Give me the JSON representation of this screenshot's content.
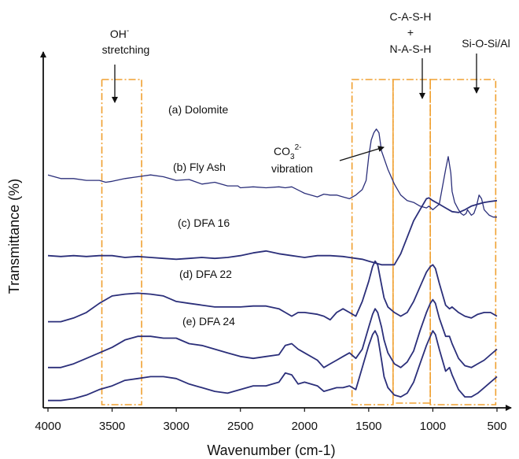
{
  "chart_data": {
    "type": "line",
    "xlabel": "Wavenumber (cm-1)",
    "ylabel": "Transmittance (%)",
    "xlim": [
      4000,
      450
    ],
    "x_reversed": true,
    "x_ticks": [
      4000,
      3500,
      3000,
      2500,
      2000,
      1500,
      1000,
      500
    ],
    "y_ticks_shown": false,
    "grid": false,
    "legend": "none",
    "line_color": "#2b2f7a",
    "box_color": "#f0a030",
    "series": [
      {
        "name": "(a) Dolomite",
        "x": [
          4000,
          3900,
          3800,
          3700,
          3600,
          3550,
          3500,
          3400,
          3300,
          3200,
          3100,
          3000,
          2900,
          2800,
          2700,
          2600,
          2520,
          2500,
          2400,
          2300,
          2200,
          2150,
          2100,
          2000,
          1900,
          1850,
          1800,
          1750,
          1700,
          1650,
          1600,
          1550,
          1520,
          1500,
          1480,
          1460,
          1440,
          1420,
          1400,
          1350,
          1300,
          1250,
          1200,
          1150,
          1100,
          1050,
          1030,
          1000,
          950,
          900,
          880,
          860,
          850,
          830,
          800,
          780,
          760,
          740,
          730,
          720,
          700,
          680,
          660,
          640,
          620,
          600,
          560,
          530,
          500
        ],
        "y": [
          0.55,
          0.57,
          0.57,
          0.58,
          0.58,
          0.59,
          0.585,
          0.57,
          0.56,
          0.55,
          0.56,
          0.58,
          0.575,
          0.6,
          0.59,
          0.61,
          0.61,
          0.62,
          0.615,
          0.62,
          0.615,
          0.62,
          0.615,
          0.65,
          0.67,
          0.655,
          0.66,
          0.66,
          0.67,
          0.68,
          0.66,
          0.63,
          0.58,
          0.45,
          0.36,
          0.32,
          0.3,
          0.32,
          0.42,
          0.52,
          0.6,
          0.66,
          0.69,
          0.7,
          0.72,
          0.73,
          0.72,
          0.74,
          0.71,
          0.52,
          0.45,
          0.54,
          0.64,
          0.7,
          0.74,
          0.76,
          0.77,
          0.76,
          0.74,
          0.75,
          0.77,
          0.76,
          0.72,
          0.66,
          0.68,
          0.74,
          0.77,
          0.78,
          0.78
        ]
      },
      {
        "name": "(b) Fly Ash",
        "x": [
          4000,
          3900,
          3800,
          3700,
          3600,
          3500,
          3400,
          3300,
          3200,
          3100,
          3000,
          2900,
          2800,
          2700,
          2600,
          2500,
          2400,
          2300,
          2200,
          2100,
          2000,
          1900,
          1800,
          1700,
          1650,
          1600,
          1550,
          1500,
          1450,
          1400,
          1350,
          1300,
          1250,
          1200,
          1150,
          1100,
          1050,
          1030,
          1000,
          950,
          900,
          850,
          800,
          750,
          700,
          650,
          600,
          550,
          500
        ],
        "y": [
          0.99,
          0.995,
          0.99,
          0.995,
          0.99,
          0.99,
          1.0,
          0.995,
          1.0,
          1.005,
          1.01,
          1.005,
          1.0,
          1.005,
          1.0,
          0.99,
          0.975,
          0.965,
          0.98,
          0.99,
          1.0,
          0.99,
          0.99,
          0.995,
          1.0,
          1.005,
          1.01,
          1.02,
          1.03,
          1.04,
          1.04,
          1.04,
          0.98,
          0.89,
          0.8,
          0.74,
          0.68,
          0.675,
          0.69,
          0.71,
          0.73,
          0.75,
          0.755,
          0.74,
          0.72,
          0.71,
          0.7,
          0.695,
          0.69
        ]
      },
      {
        "name": "(c) DFA 16",
        "x": [
          4000,
          3900,
          3800,
          3700,
          3600,
          3500,
          3400,
          3300,
          3200,
          3100,
          3000,
          2900,
          2800,
          2700,
          2600,
          2500,
          2400,
          2300,
          2200,
          2150,
          2100,
          2050,
          2000,
          1900,
          1850,
          1800,
          1750,
          1700,
          1650,
          1600,
          1550,
          1500,
          1470,
          1450,
          1430,
          1400,
          1380,
          1350,
          1300,
          1250,
          1200,
          1150,
          1100,
          1050,
          1020,
          1000,
          980,
          950,
          900,
          870,
          850,
          800,
          750,
          700,
          650,
          600,
          550,
          500
        ],
        "y": [
          1.35,
          1.35,
          1.33,
          1.3,
          1.25,
          1.21,
          1.2,
          1.195,
          1.2,
          1.21,
          1.24,
          1.25,
          1.26,
          1.27,
          1.27,
          1.27,
          1.265,
          1.265,
          1.28,
          1.3,
          1.32,
          1.3,
          1.3,
          1.31,
          1.32,
          1.34,
          1.3,
          1.28,
          1.3,
          1.32,
          1.24,
          1.13,
          1.05,
          1.02,
          1.04,
          1.15,
          1.22,
          1.27,
          1.3,
          1.32,
          1.3,
          1.24,
          1.16,
          1.08,
          1.05,
          1.04,
          1.06,
          1.14,
          1.26,
          1.28,
          1.27,
          1.3,
          1.32,
          1.33,
          1.31,
          1.3,
          1.3,
          1.32
        ]
      },
      {
        "name": "(d) DFA 22",
        "x": [
          4000,
          3900,
          3800,
          3700,
          3600,
          3500,
          3400,
          3300,
          3200,
          3100,
          3000,
          2900,
          2800,
          2700,
          2600,
          2500,
          2400,
          2300,
          2200,
          2150,
          2100,
          2050,
          2000,
          1900,
          1850,
          1800,
          1750,
          1700,
          1650,
          1600,
          1550,
          1500,
          1470,
          1450,
          1430,
          1400,
          1380,
          1350,
          1300,
          1250,
          1200,
          1150,
          1100,
          1050,
          1020,
          1000,
          980,
          950,
          900,
          870,
          850,
          800,
          750,
          700,
          650,
          600,
          550,
          500
        ],
        "y": [
          1.6,
          1.6,
          1.58,
          1.55,
          1.52,
          1.49,
          1.45,
          1.43,
          1.43,
          1.44,
          1.44,
          1.47,
          1.48,
          1.5,
          1.52,
          1.54,
          1.55,
          1.54,
          1.53,
          1.48,
          1.47,
          1.5,
          1.52,
          1.56,
          1.6,
          1.58,
          1.56,
          1.54,
          1.52,
          1.55,
          1.5,
          1.38,
          1.31,
          1.28,
          1.3,
          1.38,
          1.45,
          1.52,
          1.58,
          1.6,
          1.57,
          1.51,
          1.4,
          1.3,
          1.25,
          1.23,
          1.25,
          1.33,
          1.43,
          1.43,
          1.47,
          1.55,
          1.59,
          1.6,
          1.58,
          1.56,
          1.53,
          1.5
        ]
      },
      {
        "name": "(e) DFA 24",
        "x": [
          4000,
          3900,
          3800,
          3700,
          3600,
          3500,
          3400,
          3300,
          3200,
          3100,
          3000,
          2900,
          2800,
          2700,
          2600,
          2500,
          2400,
          2300,
          2200,
          2150,
          2100,
          2050,
          2000,
          1900,
          1850,
          1800,
          1750,
          1700,
          1650,
          1600,
          1550,
          1500,
          1470,
          1450,
          1430,
          1400,
          1380,
          1350,
          1300,
          1250,
          1200,
          1150,
          1100,
          1050,
          1020,
          1000,
          980,
          950,
          900,
          870,
          850,
          800,
          750,
          700,
          650,
          600,
          550,
          500
        ],
        "y": [
          1.78,
          1.78,
          1.77,
          1.75,
          1.72,
          1.7,
          1.67,
          1.66,
          1.65,
          1.65,
          1.66,
          1.69,
          1.71,
          1.73,
          1.74,
          1.72,
          1.7,
          1.7,
          1.68,
          1.63,
          1.64,
          1.69,
          1.68,
          1.7,
          1.73,
          1.72,
          1.71,
          1.71,
          1.7,
          1.72,
          1.6,
          1.48,
          1.42,
          1.4,
          1.43,
          1.56,
          1.65,
          1.71,
          1.75,
          1.76,
          1.74,
          1.68,
          1.58,
          1.48,
          1.43,
          1.4,
          1.42,
          1.5,
          1.62,
          1.6,
          1.64,
          1.72,
          1.76,
          1.76,
          1.74,
          1.71,
          1.68,
          1.65
        ]
      }
    ],
    "annotations": {
      "oh_text": "OH",
      "oh_sup": "-",
      "oh_line2": "stretching",
      "co3_text": "CO",
      "co3_sub": "3",
      "co3_sup": "2-",
      "co3_line2": "vibration",
      "cash_line1": "C-A-S-H",
      "cash_line2": "+",
      "cash_line3": "N-A-S-H",
      "sioal": "Si-O-Si/Al"
    },
    "highlight_regions": [
      {
        "from": 3580,
        "to": 3270
      },
      {
        "from": 1630,
        "to": 1310
      },
      {
        "from": 1310,
        "to": 1020
      },
      {
        "from": 1020,
        "to": 510
      }
    ]
  }
}
